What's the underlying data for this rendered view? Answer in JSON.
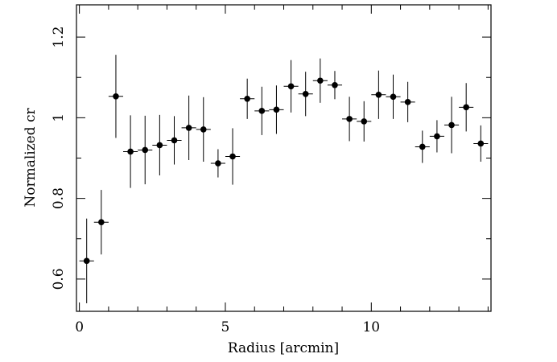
{
  "chart_data": {
    "type": "scatter",
    "title": "",
    "xlabel": "Radius [arcmin]",
    "ylabel": "Normalized cr",
    "xlim": [
      -0.1,
      14.1
    ],
    "ylim": [
      0.52,
      1.28
    ],
    "x_ticks": [
      {
        "value": 0,
        "label": "0"
      },
      {
        "value": 5,
        "label": "5"
      },
      {
        "value": 10,
        "label": "10"
      }
    ],
    "y_ticks": [
      {
        "value": 0.6,
        "label": "0.6"
      },
      {
        "value": 0.8,
        "label": "0.8"
      },
      {
        "value": 1.0,
        "label": "1"
      },
      {
        "value": 1.2,
        "label": "1.2"
      }
    ],
    "x_minor_step": 1,
    "y_minor_step": 0.1,
    "grid": false,
    "legend": "none",
    "marker_color": "#000000",
    "points": [
      {
        "x": 0.25,
        "y": 0.645,
        "xerr": 0.25,
        "yerr_low": 0.105,
        "yerr_high": 0.105
      },
      {
        "x": 0.75,
        "y": 0.741,
        "xerr": 0.25,
        "yerr_low": 0.08,
        "yerr_high": 0.08
      },
      {
        "x": 1.25,
        "y": 1.053,
        "xerr": 0.25,
        "yerr_low": 0.103,
        "yerr_high": 0.103
      },
      {
        "x": 1.75,
        "y": 0.916,
        "xerr": 0.25,
        "yerr_low": 0.09,
        "yerr_high": 0.09
      },
      {
        "x": 2.25,
        "y": 0.92,
        "xerr": 0.25,
        "yerr_low": 0.085,
        "yerr_high": 0.085
      },
      {
        "x": 2.75,
        "y": 0.932,
        "xerr": 0.25,
        "yerr_low": 0.075,
        "yerr_high": 0.075
      },
      {
        "x": 3.25,
        "y": 0.944,
        "xerr": 0.25,
        "yerr_low": 0.06,
        "yerr_high": 0.06
      },
      {
        "x": 3.75,
        "y": 0.975,
        "xerr": 0.25,
        "yerr_low": 0.08,
        "yerr_high": 0.08
      },
      {
        "x": 4.25,
        "y": 0.971,
        "xerr": 0.25,
        "yerr_low": 0.08,
        "yerr_high": 0.08
      },
      {
        "x": 4.75,
        "y": 0.887,
        "xerr": 0.25,
        "yerr_low": 0.035,
        "yerr_high": 0.035
      },
      {
        "x": 5.25,
        "y": 0.904,
        "xerr": 0.25,
        "yerr_low": 0.07,
        "yerr_high": 0.07
      },
      {
        "x": 5.75,
        "y": 1.047,
        "xerr": 0.25,
        "yerr_low": 0.05,
        "yerr_high": 0.05
      },
      {
        "x": 6.25,
        "y": 1.017,
        "xerr": 0.25,
        "yerr_low": 0.06,
        "yerr_high": 0.06
      },
      {
        "x": 6.75,
        "y": 1.02,
        "xerr": 0.25,
        "yerr_low": 0.06,
        "yerr_high": 0.06
      },
      {
        "x": 7.25,
        "y": 1.078,
        "xerr": 0.25,
        "yerr_low": 0.065,
        "yerr_high": 0.065
      },
      {
        "x": 7.75,
        "y": 1.059,
        "xerr": 0.25,
        "yerr_low": 0.055,
        "yerr_high": 0.055
      },
      {
        "x": 8.25,
        "y": 1.092,
        "xerr": 0.25,
        "yerr_low": 0.055,
        "yerr_high": 0.055
      },
      {
        "x": 8.75,
        "y": 1.081,
        "xerr": 0.25,
        "yerr_low": 0.035,
        "yerr_high": 0.035
      },
      {
        "x": 9.25,
        "y": 0.997,
        "xerr": 0.25,
        "yerr_low": 0.055,
        "yerr_high": 0.055
      },
      {
        "x": 9.75,
        "y": 0.991,
        "xerr": 0.25,
        "yerr_low": 0.05,
        "yerr_high": 0.05
      },
      {
        "x": 10.25,
        "y": 1.057,
        "xerr": 0.25,
        "yerr_low": 0.06,
        "yerr_high": 0.06
      },
      {
        "x": 10.75,
        "y": 1.052,
        "xerr": 0.25,
        "yerr_low": 0.055,
        "yerr_high": 0.055
      },
      {
        "x": 11.25,
        "y": 1.039,
        "xerr": 0.25,
        "yerr_low": 0.05,
        "yerr_high": 0.05
      },
      {
        "x": 11.75,
        "y": 0.928,
        "xerr": 0.25,
        "yerr_low": 0.04,
        "yerr_high": 0.04
      },
      {
        "x": 12.25,
        "y": 0.954,
        "xerr": 0.25,
        "yerr_low": 0.04,
        "yerr_high": 0.04
      },
      {
        "x": 12.75,
        "y": 0.982,
        "xerr": 0.25,
        "yerr_low": 0.07,
        "yerr_high": 0.07
      },
      {
        "x": 13.25,
        "y": 1.026,
        "xerr": 0.25,
        "yerr_low": 0.06,
        "yerr_high": 0.06
      },
      {
        "x": 13.75,
        "y": 0.936,
        "xerr": 0.25,
        "yerr_low": 0.045,
        "yerr_high": 0.045
      }
    ]
  }
}
